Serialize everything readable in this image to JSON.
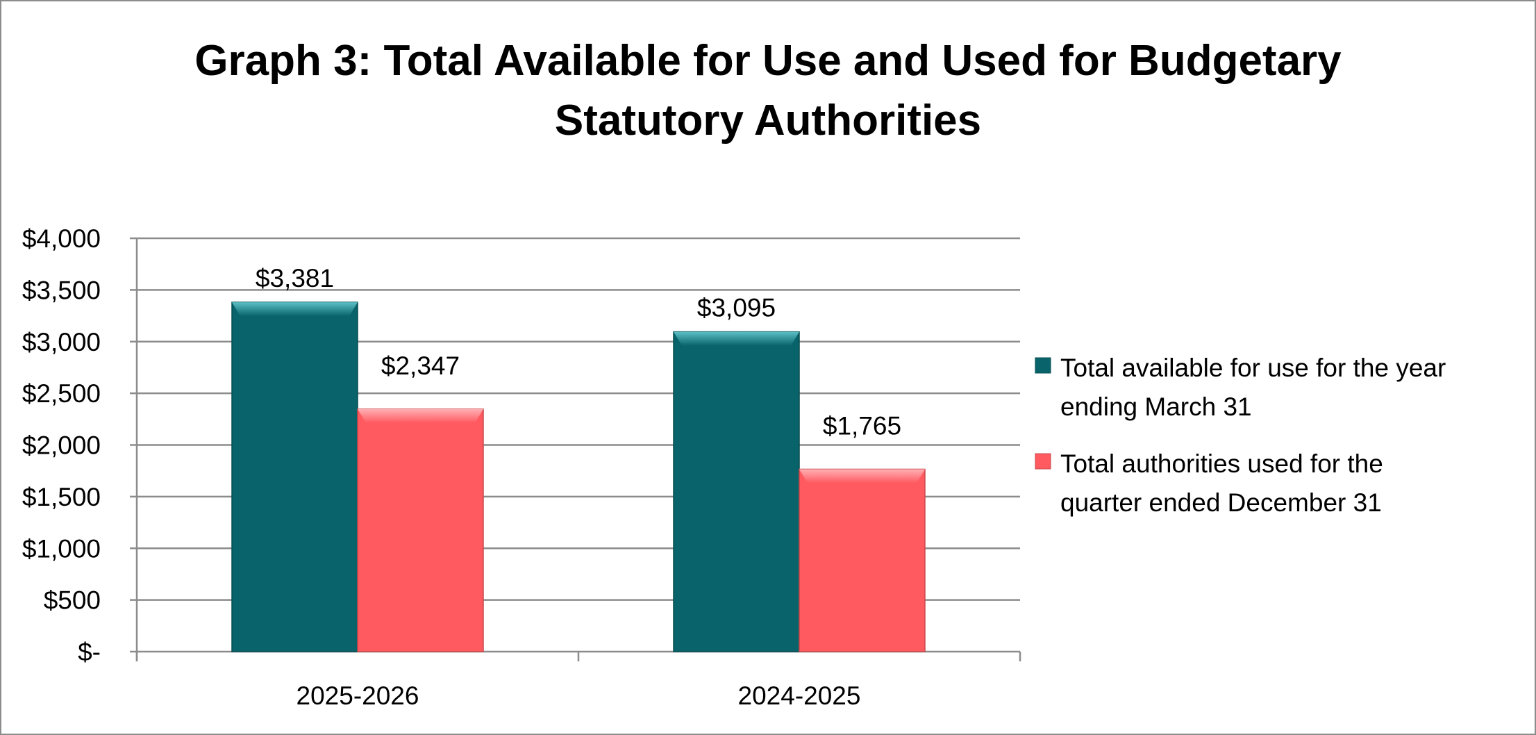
{
  "chart_data": {
    "type": "bar",
    "title": "Graph 3: Total Available for Use and Used for Budgetary Statutory Authorities",
    "title_lines": [
      "Graph 3: Total Available for Use and Used for Budgetary",
      "Statutory Authorities"
    ],
    "categories": [
      "2025-2026",
      "2024-2025"
    ],
    "series": [
      {
        "name": "Total available for use for the year ending March 31",
        "legend_lines": [
          "Total available for use for the year",
          "ending March 31"
        ],
        "values": [
          3381,
          3095
        ],
        "labels": [
          "$3,381",
          "$3,095"
        ],
        "color": "#08646a"
      },
      {
        "name": "Total authorities used for the quarter ended December 31",
        "legend_lines": [
          "Total authorities used for the",
          "quarter ended December 31"
        ],
        "values": [
          2347,
          1765
        ],
        "labels": [
          "$2,347",
          "$1,765"
        ],
        "color": "#ff5a60"
      }
    ],
    "ylim": [
      0,
      4000
    ],
    "yticks": [
      0,
      500,
      1000,
      1500,
      2000,
      2500,
      3000,
      3500,
      4000
    ],
    "ytick_labels": [
      "$-",
      "$500",
      "$1,000",
      "$1,500",
      "$2,000",
      "$2,500",
      "$3,000",
      "$3,500",
      "$4,000"
    ],
    "xlabel": "",
    "ylabel": "",
    "grid": true,
    "legend": "right"
  }
}
